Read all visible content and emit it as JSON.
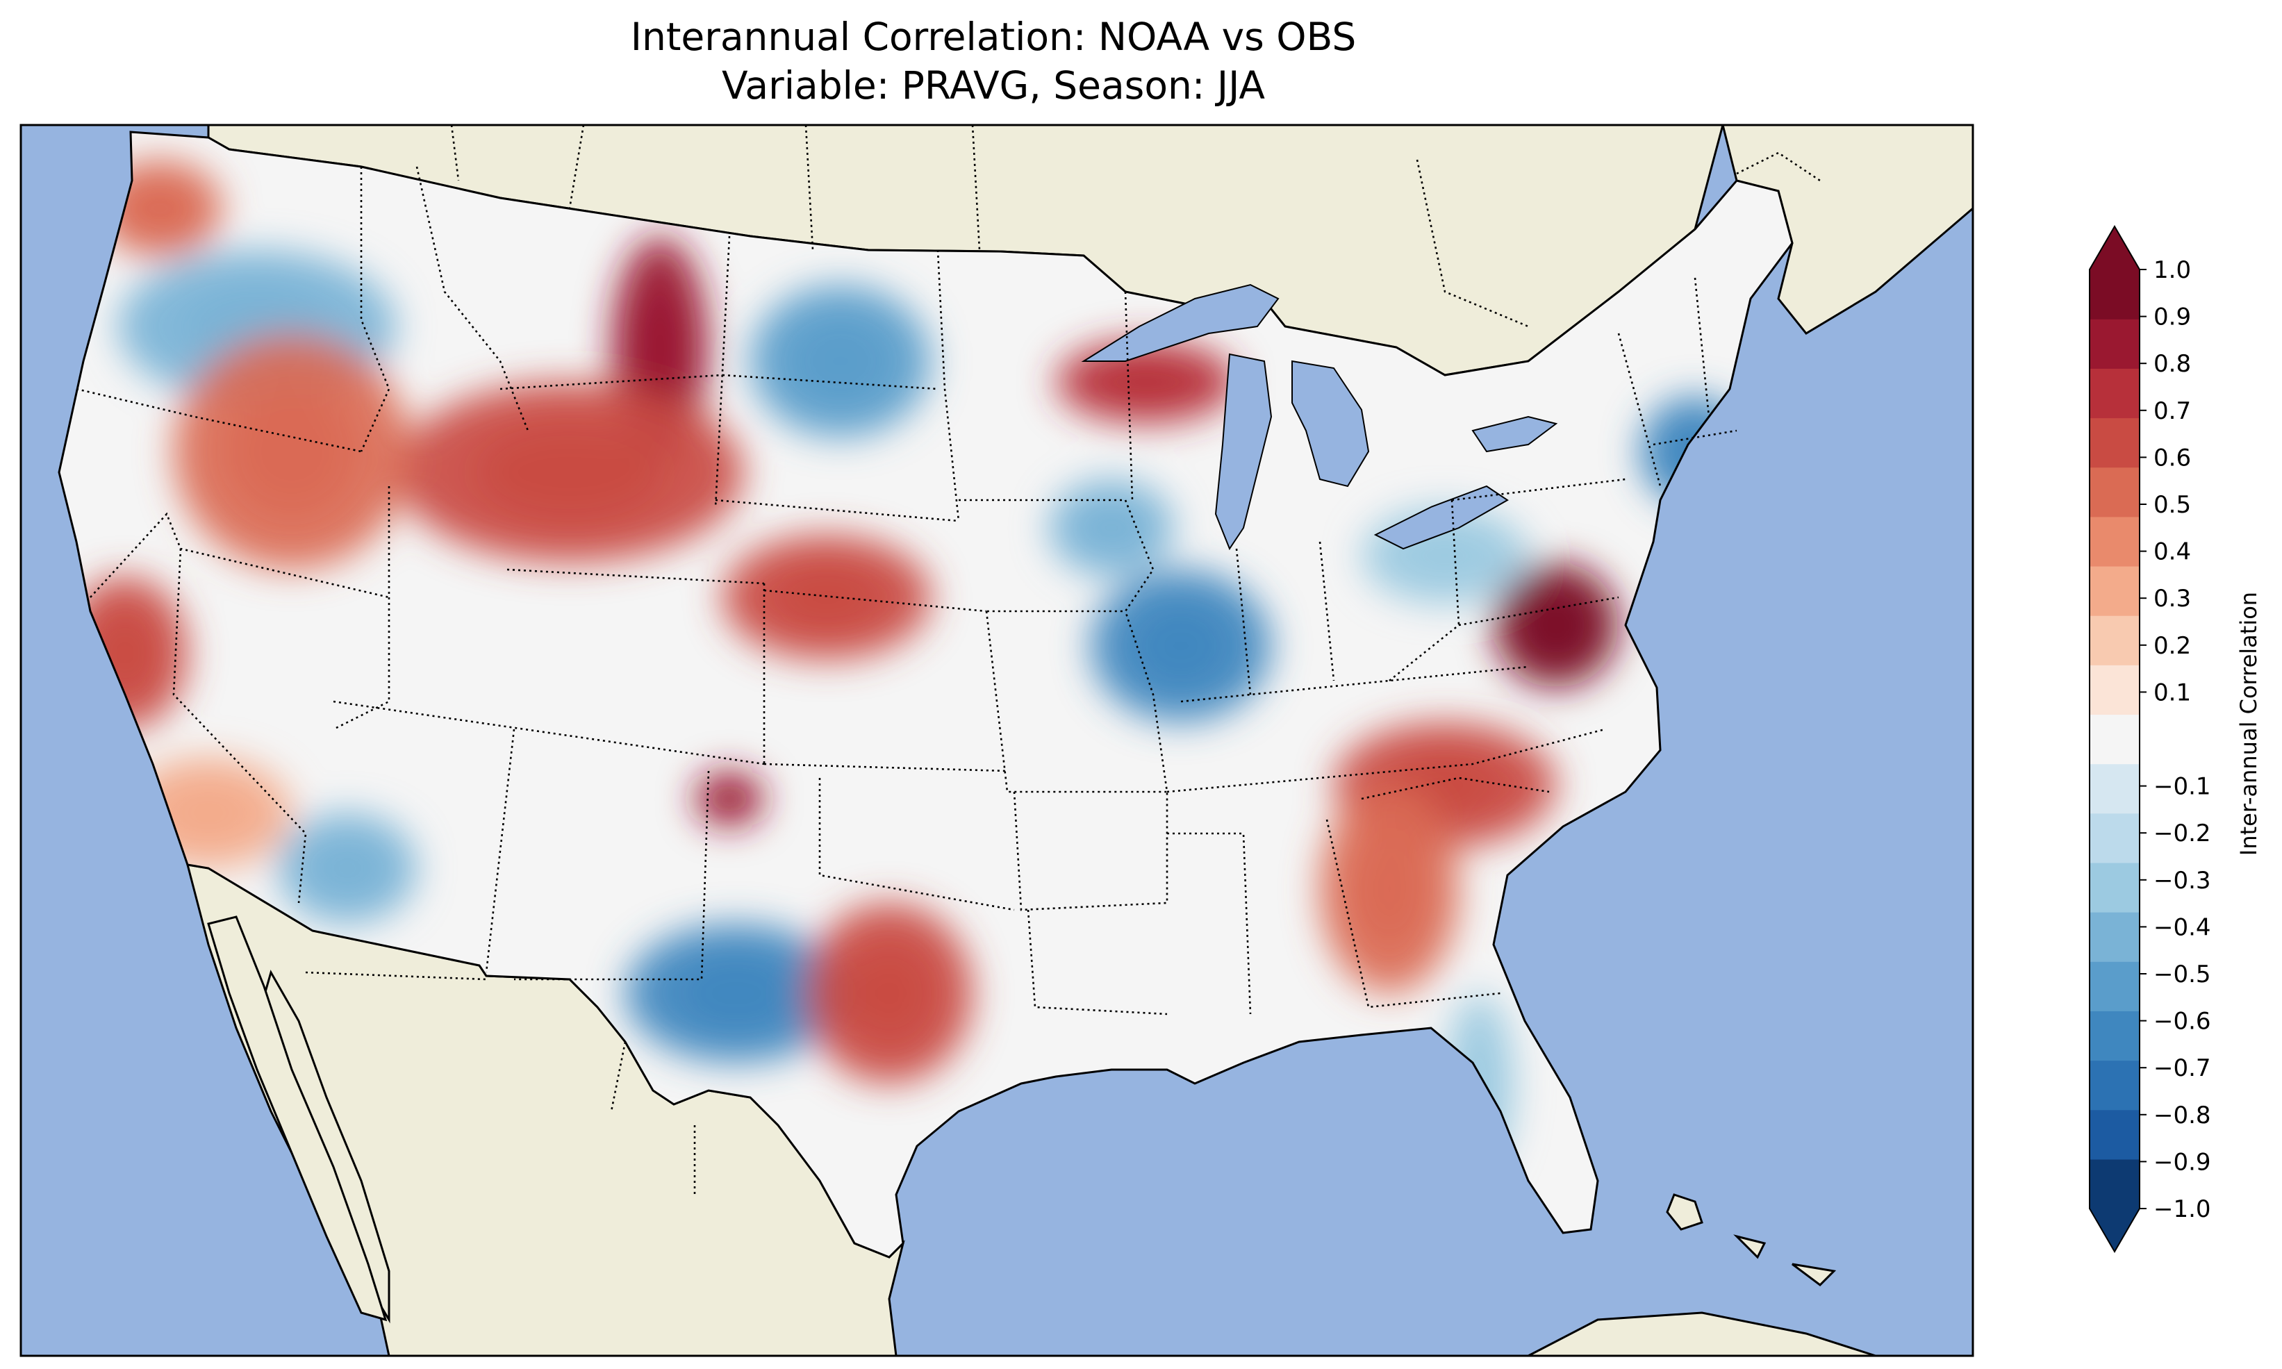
{
  "title": {
    "line1": "Interannual Correlation: NOAA vs OBS",
    "line2": "Variable: PRAVG, Season: JJA"
  },
  "colors": {
    "ocean": "#96b4e0",
    "land": "#efedda",
    "frame": "#000000"
  },
  "colorbar": {
    "label": "Inter-annual Correlation",
    "ticks": [
      "1.0",
      "0.9",
      "0.8",
      "0.7",
      "0.6",
      "0.5",
      "0.4",
      "0.3",
      "0.2",
      "0.1",
      "−0.1",
      "−0.2",
      "−0.3",
      "−0.4",
      "−0.5",
      "−0.6",
      "−0.7",
      "−0.8",
      "−0.9",
      "−1.0"
    ],
    "levels": [
      -1.0,
      -0.9,
      -0.8,
      -0.7,
      -0.6,
      -0.5,
      -0.4,
      -0.3,
      -0.2,
      -0.1,
      0.1,
      0.2,
      0.3,
      0.4,
      0.5,
      0.6,
      0.7,
      0.8,
      0.9,
      1.0
    ],
    "band_colors_bottom_to_top": [
      "#0d3a72",
      "#1c5ba2",
      "#2c72b3",
      "#3f87bf",
      "#5a9dcb",
      "#7ab3d6",
      "#9ccae1",
      "#bcdaeb",
      "#d6e7f1",
      "#f5f5f5",
      "#fbe4d7",
      "#f8cab0",
      "#f3ab8b",
      "#e98a6c",
      "#da6b54",
      "#c94b43",
      "#b7303a",
      "#9a1830",
      "#7b0c25"
    ],
    "extend_under_color": "#0d3a72",
    "extend_over_color": "#7b0c25"
  },
  "chart_data": {
    "type": "heatmap",
    "title": "Interannual Correlation: NOAA vs OBS",
    "subtitle": "Variable: PRAVG, Season: JJA",
    "colorbar_label": "Inter-annual Correlation",
    "vmin": -1.0,
    "vmax": 1.0,
    "extend": "both",
    "regions": [
      {
        "name": "Pacific Northwest coast",
        "value": 0.5
      },
      {
        "name": "Oregon / Idaho",
        "value": -0.4
      },
      {
        "name": "Montana",
        "value": 0.8
      },
      {
        "name": "North Dakota",
        "value": -0.5
      },
      {
        "name": "Wyoming / Colorado",
        "value": 0.6
      },
      {
        "name": "Nevada",
        "value": 0.5
      },
      {
        "name": "Northern California",
        "value": 0.6
      },
      {
        "name": "Southern California",
        "value": 0.3
      },
      {
        "name": "Arizona",
        "value": -0.4
      },
      {
        "name": "Kansas",
        "value": 0.6
      },
      {
        "name": "Minnesota / Wisconsin",
        "value": 0.7
      },
      {
        "name": "Illinois / Indiana",
        "value": -0.6
      },
      {
        "name": "Iowa",
        "value": -0.4
      },
      {
        "name": "Texas (west)",
        "value": -0.6
      },
      {
        "name": "Texas (east)",
        "value": 0.6
      },
      {
        "name": "Virginia",
        "value": 0.9
      },
      {
        "name": "Carolinas",
        "value": 0.6
      },
      {
        "name": "Georgia",
        "value": 0.5
      },
      {
        "name": "New England",
        "value": -0.6
      },
      {
        "name": "Ohio / Pennsylvania",
        "value": -0.3
      },
      {
        "name": "Florida",
        "value": -0.3
      },
      {
        "name": "New Mexico",
        "value": 0.8
      }
    ]
  }
}
